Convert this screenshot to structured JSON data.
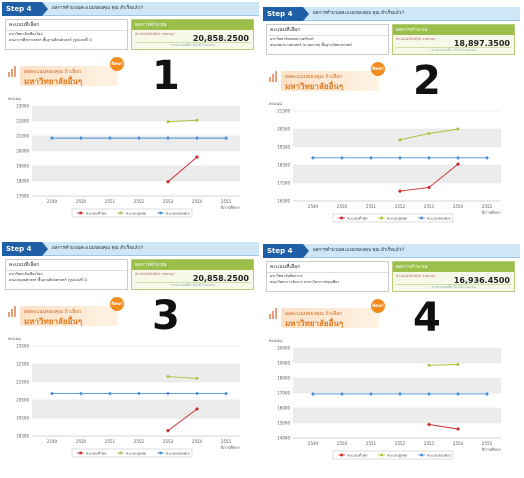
{
  "common": {
    "step_label": "Step 4",
    "step_title": "ผลการคำนวณคะแนนของคุณ คุณ สำเร็จแล้ว!!",
    "info_head": "คะแนนที่เลือก",
    "score_head": "ผลการคำนวณ",
    "score_hint": "คะแนนของคุณ xtamp!",
    "score_foot": "จากคะแนนเต็ม 30,000 คะแนน",
    "banner_line1": "ผลคะแนนของคุณ ถ้าเลือก",
    "banner_line2": "มหาวิทยาลัยอื่นๆ",
    "new_badge": "New!",
    "y_axis_label": "คะแนน",
    "x_axis_label": "ปีการศึกษา",
    "legend": [
      "คะแนนต่ำสุด",
      "คะแนนสูงสุด",
      "คะแนนของคุณ"
    ],
    "colors": {
      "min": "#cc2a2a",
      "max": "#a9c23a",
      "you": "#4a90d9",
      "step": "#1e5fa8"
    }
  },
  "panels": [
    {
      "big_label": "1",
      "info_lines": [
        "มหาวิทยาลัยเชียงใหม่",
        "คณะการศึกษาเกษตร พื้นฐานศิลปศาสตร์ (รูปแบบที่ 1)"
      ],
      "score_value": "20,858.2500"
    },
    {
      "big_label": "2",
      "info_lines": [
        "มหาวิทยาลัยสงขลานครินทร์",
        "คณะพยาบาลศาสตร์ (ม.สุขภาพ) พื้นฐานวิทยาศาสตร์"
      ],
      "score_value": "18,897.3500"
    },
    {
      "big_label": "3",
      "info_lines": [
        "มหาวิทยาลัยเชียงใหม่",
        "คณะมนุษยศาสตร์ พื้นฐานศิลปศาสตร์ (รูปแบบที่ 1)"
      ],
      "score_value": "20,858.2500"
    },
    {
      "big_label": "4",
      "info_lines": [
        "มหาวิทยาลัยศิลปากร",
        "คณะวิทยาการจัดการ สาขาวิชาการท่องเที่ยว"
      ],
      "score_value": "16,936.4500"
    }
  ],
  "chart_data": [
    {
      "type": "line",
      "x": [
        "2549",
        "2550",
        "2551",
        "2552",
        "2553",
        "2554",
        "2555"
      ],
      "ylim": [
        17000,
        23000
      ],
      "yticks": [
        "17000",
        "18000",
        "19000",
        "20000",
        "21000",
        "22000",
        "23000"
      ],
      "series": [
        {
          "name": "คะแนนต่ำสุด",
          "values": [
            null,
            null,
            null,
            null,
            17950,
            19600,
            null
          ]
        },
        {
          "name": "คะแนนสูงสุด",
          "values": [
            null,
            null,
            null,
            null,
            21950,
            22050,
            null
          ]
        },
        {
          "name": "คะแนนของคุณ",
          "values": [
            20858,
            20858,
            20858,
            20858,
            20858,
            20858,
            20858
          ]
        }
      ]
    },
    {
      "type": "line",
      "x": [
        "2549",
        "2550",
        "2551",
        "2552",
        "2553",
        "2554",
        "2555"
      ],
      "ylim": [
        16500,
        21500
      ],
      "yticks": [
        "16500",
        "17500",
        "18500",
        "19500",
        "20500",
        "21500"
      ],
      "series": [
        {
          "name": "คะแนนต่ำสุด",
          "values": [
            null,
            null,
            null,
            17050,
            17250,
            18550,
            null
          ]
        },
        {
          "name": "คะแนนสูงสุด",
          "values": [
            null,
            null,
            null,
            19900,
            20250,
            20500,
            null
          ]
        },
        {
          "name": "คะแนนของคุณ",
          "values": [
            18897,
            18897,
            18897,
            18897,
            18897,
            18897,
            18897
          ]
        }
      ]
    },
    {
      "type": "line",
      "x": [
        "2549",
        "2550",
        "2551",
        "2552",
        "2553",
        "2554",
        "2555"
      ],
      "ylim": [
        18500,
        23500
      ],
      "yticks": [
        "18500",
        "19500",
        "20500",
        "21500",
        "22500",
        "23500"
      ],
      "series": [
        {
          "name": "คะแนนต่ำสุด",
          "values": [
            null,
            null,
            null,
            null,
            18800,
            20000,
            null
          ]
        },
        {
          "name": "คะแนนสูงสุด",
          "values": [
            null,
            null,
            null,
            null,
            21800,
            21700,
            null
          ]
        },
        {
          "name": "คะแนนของคุณ",
          "values": [
            20858,
            20858,
            20858,
            20858,
            20858,
            20858,
            20858
          ]
        }
      ]
    },
    {
      "type": "line",
      "x": [
        "2549",
        "2550",
        "2551",
        "2552",
        "2553",
        "2554",
        "2555"
      ],
      "ylim": [
        14000,
        20000
      ],
      "yticks": [
        "14000",
        "15000",
        "16000",
        "17000",
        "18000",
        "19000",
        "20000"
      ],
      "series": [
        {
          "name": "คะแนนต่ำสุด",
          "values": [
            null,
            null,
            null,
            null,
            14900,
            14600,
            null
          ]
        },
        {
          "name": "คะแนนสูงสุด",
          "values": [
            null,
            null,
            null,
            null,
            18850,
            18900,
            null
          ]
        },
        {
          "name": "คะแนนของคุณ",
          "values": [
            16936,
            16936,
            16936,
            16936,
            16936,
            16936,
            16936
          ]
        }
      ]
    }
  ]
}
